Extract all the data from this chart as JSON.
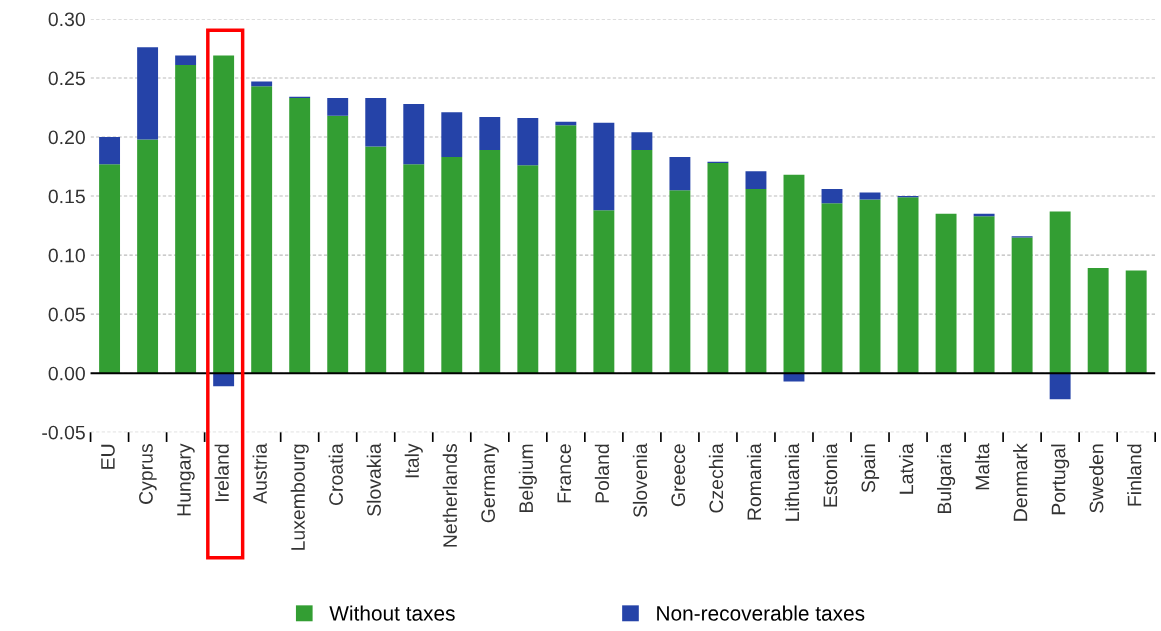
{
  "chart_data": {
    "type": "bar",
    "stacked": true,
    "categories": [
      "EU",
      "Cyprus",
      "Hungary",
      "Ireland",
      "Austria",
      "Luxembourg",
      "Croatia",
      "Slovakia",
      "Italy",
      "Netherlands",
      "Germany",
      "Belgium",
      "France",
      "Poland",
      "Slovenia",
      "Greece",
      "Czechia",
      "Romania",
      "Lithuania",
      "Estonia",
      "Spain",
      "Latvia",
      "Bulgaria",
      "Malta",
      "Denmark",
      "Portugal",
      "Sweden",
      "Finland"
    ],
    "series": [
      {
        "name": "Without taxes",
        "color": "#339e33",
        "values": [
          0.177,
          0.198,
          0.261,
          0.269,
          0.243,
          0.233,
          0.218,
          0.192,
          0.177,
          0.183,
          0.189,
          0.176,
          0.21,
          0.138,
          0.189,
          0.155,
          0.178,
          0.156,
          0.168,
          0.144,
          0.147,
          0.149,
          0.135,
          0.133,
          0.115,
          0.137,
          0.089,
          0.087
        ]
      },
      {
        "name": "Non-recoverable taxes",
        "color": "#2543a8",
        "values": [
          0.023,
          0.078,
          0.008,
          -0.011,
          0.004,
          0.001,
          0.015,
          0.041,
          0.051,
          0.038,
          0.028,
          0.04,
          0.003,
          0.074,
          0.015,
          0.028,
          0.001,
          0.015,
          -0.007,
          0.012,
          0.006,
          0.001,
          null,
          0.002,
          0.001,
          -0.022,
          null,
          null
        ]
      }
    ],
    "ylim": [
      -0.05,
      0.3
    ],
    "yticks": [
      {
        "value": -0.05,
        "label": "-0.05"
      },
      {
        "value": 0.0,
        "label": "0.00"
      },
      {
        "value": 0.05,
        "label": "0.05"
      },
      {
        "value": 0.1,
        "label": "0.10"
      },
      {
        "value": 0.15,
        "label": "0.15"
      },
      {
        "value": 0.2,
        "label": "0.20"
      },
      {
        "value": 0.25,
        "label": "0.25"
      },
      {
        "value": 0.3,
        "label": "0.30"
      }
    ],
    "grid": "y",
    "legend": "bottom"
  }
}
